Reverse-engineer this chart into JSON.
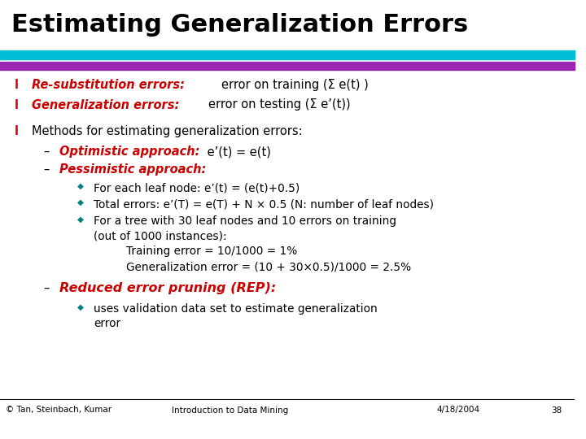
{
  "title": "Estimating Generalization Errors",
  "title_color": "#000000",
  "title_fontsize": 22,
  "bg_color": "#ffffff",
  "bar1_color": "#00bcd4",
  "bar2_color": "#9c27b0",
  "red_color": "#cc0000",
  "teal_color": "#008080",
  "black_color": "#000000",
  "footer_text": "© Tan, Steinbach, Kumar",
  "footer_center": "Introduction to Data Mining",
  "footer_right1": "4/18/2004",
  "footer_right2": "38"
}
